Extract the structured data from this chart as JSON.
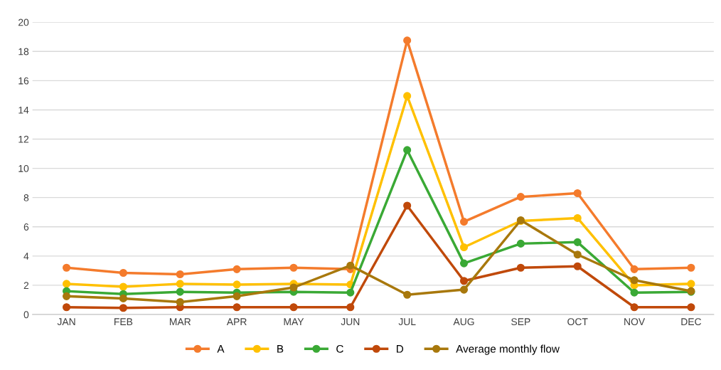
{
  "chart_data": {
    "type": "line",
    "categories": [
      "JAN",
      "FEB",
      "MAR",
      "APR",
      "MAY",
      "JUN",
      "JUL",
      "AUG",
      "SEP",
      "OCT",
      "NOV",
      "DEC"
    ],
    "series": [
      {
        "name": "A",
        "color": "#f47b2c",
        "values": [
          3.2,
          2.85,
          2.75,
          3.1,
          3.2,
          3.1,
          18.75,
          6.35,
          8.05,
          8.3,
          3.1,
          3.2
        ]
      },
      {
        "name": "B",
        "color": "#ffc000",
        "values": [
          2.1,
          1.9,
          2.1,
          2.05,
          2.1,
          2.05,
          14.95,
          4.6,
          6.4,
          6.6,
          2.0,
          2.1
        ]
      },
      {
        "name": "C",
        "color": "#3aa935",
        "values": [
          1.6,
          1.4,
          1.55,
          1.5,
          1.55,
          1.5,
          11.25,
          3.5,
          4.85,
          4.95,
          1.5,
          1.55
        ]
      },
      {
        "name": "D",
        "color": "#c0490a",
        "values": [
          0.5,
          0.45,
          0.5,
          0.5,
          0.5,
          0.5,
          7.45,
          2.3,
          3.2,
          3.3,
          0.5,
          0.5
        ]
      },
      {
        "name": "Average monthly flow",
        "color": "#a8780c",
        "values": [
          1.25,
          1.1,
          0.85,
          1.25,
          1.85,
          3.35,
          1.35,
          1.7,
          6.45,
          4.1,
          2.35,
          1.6
        ]
      }
    ],
    "ylim": [
      0,
      20
    ],
    "yticks": [
      0,
      2,
      4,
      6,
      8,
      10,
      12,
      14,
      16,
      18,
      20
    ],
    "grid": "y",
    "legend": "bottom",
    "marker": "circle",
    "line_style": "solid"
  }
}
